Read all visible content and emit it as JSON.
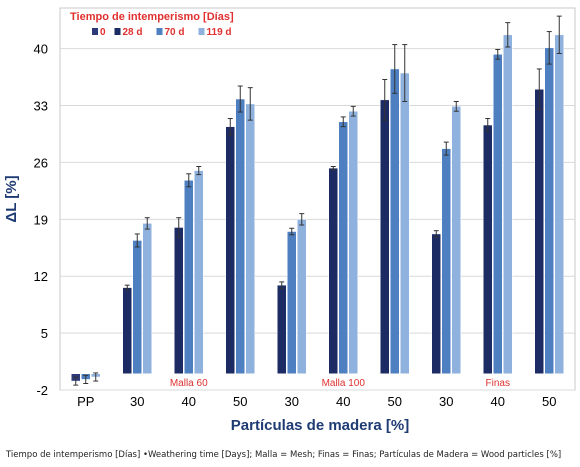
{
  "chart_data": {
    "type": "bar",
    "xlabel": "Partículas de madera [%]",
    "ylabel": "ΔL [%]",
    "ylim": [
      -2,
      45
    ],
    "yticks": [
      -2,
      5,
      12,
      19,
      26,
      33,
      40
    ],
    "grid": "horizontal",
    "legend": {
      "title": "Tiempo de intemperismo [Días]",
      "placement": "top-left"
    },
    "categories": [
      "PP",
      "30",
      "40",
      "50",
      "30",
      "40",
      "50",
      "30",
      "40",
      "50"
    ],
    "groups": [
      {
        "label": "Malla 60",
        "categories": [
          1,
          2,
          3
        ]
      },
      {
        "label": "Malla 100",
        "categories": [
          4,
          5,
          6
        ]
      },
      {
        "label": "Finas",
        "categories": [
          7,
          8,
          9
        ]
      }
    ],
    "series": [
      {
        "name": "0",
        "color": "#2e3a78",
        "values": [
          -0.9,
          null,
          null,
          null,
          null,
          null,
          null,
          null,
          null,
          null
        ],
        "errors": [
          0.5,
          null,
          null,
          null,
          null,
          null,
          null,
          null,
          null,
          null
        ]
      },
      {
        "name": "28 d",
        "color": "#1c2b63",
        "values": [
          null,
          10.6,
          18.0,
          30.4,
          10.9,
          25.3,
          33.7,
          17.2,
          30.6,
          35.0
        ],
        "errors": [
          null,
          0.3,
          1.2,
          1.0,
          0.4,
          0.2,
          2.5,
          0.4,
          0.8,
          2.5
        ]
      },
      {
        "name": "70 d",
        "color": "#4e7fc0",
        "values": [
          -0.7,
          16.4,
          23.8,
          33.8,
          17.5,
          31.0,
          37.5,
          27.7,
          39.3,
          40.1
        ],
        "errors": [
          0.5,
          0.8,
          0.8,
          1.6,
          0.4,
          0.6,
          3.0,
          0.8,
          0.6,
          2.0
        ]
      },
      {
        "name": "119 d",
        "color": "#8fb1de",
        "values": [
          -0.4,
          18.5,
          25.0,
          33.2,
          19.0,
          32.3,
          37.0,
          32.9,
          41.7,
          41.7
        ],
        "errors": [
          0.5,
          0.7,
          0.5,
          2.0,
          0.7,
          0.6,
          3.5,
          0.6,
          1.5,
          2.3
        ]
      }
    ]
  },
  "caption": "Tiempo de intemperismo [Días] •Weathering time [Days]; Malla = Mesh; Finas = Finas; Partículas de Madera = Wood particles [%]"
}
